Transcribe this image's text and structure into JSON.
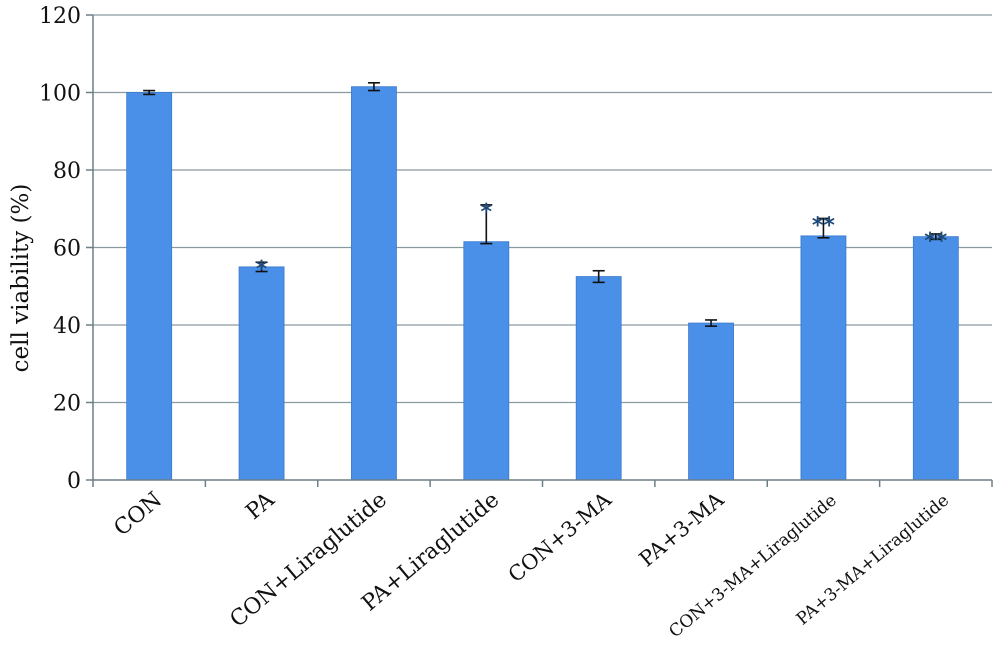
{
  "chart_data": {
    "type": "bar",
    "title": "",
    "xlabel": "",
    "ylabel": "cell viability (%)",
    "ylim": [
      0,
      120
    ],
    "yticks": [
      0,
      20,
      40,
      60,
      80,
      100,
      120
    ],
    "grid": true,
    "legend": "none",
    "categories": [
      "CON",
      "PA",
      "CON+Liraglutide",
      "PA+Liraglutide",
      "CON+3-MA",
      "PA+3-MA",
      "CON+3-MA+Liraglutide",
      "PA+3-MA+Liraglutide"
    ],
    "values": [
      100,
      55,
      101.5,
      61.5,
      52.5,
      40.5,
      63,
      62.8
    ],
    "error_plus": [
      0.5,
      1.2,
      1.0,
      9.5,
      1.5,
      0.8,
      4.5,
      0.7
    ],
    "error_minus": [
      0.5,
      1.2,
      1.0,
      0.5,
      1.5,
      0.8,
      0.5,
      0.7
    ],
    "annotations": [
      "",
      "*",
      "",
      "*",
      "",
      "",
      "**",
      "**"
    ],
    "bar_color": "#4a8fe8",
    "annotation_color": "#1f4a78"
  }
}
